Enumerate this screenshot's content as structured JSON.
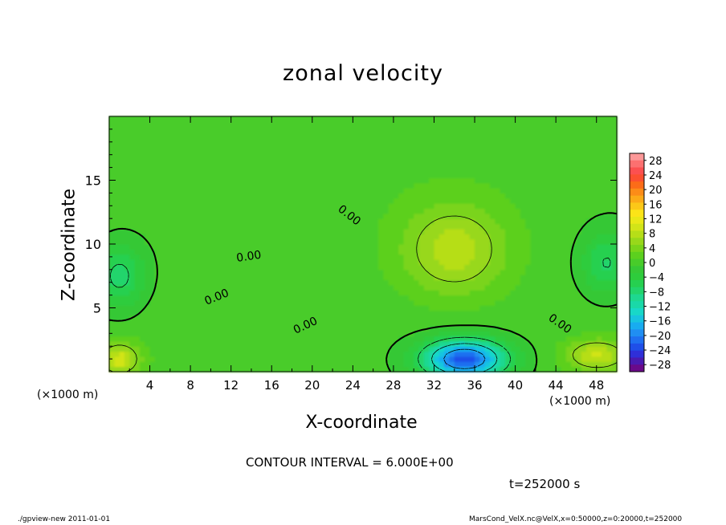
{
  "chart_data": {
    "type": "contour",
    "title": "zonal velocity",
    "xlabel": "X-coordinate",
    "ylabel": "Z-coordinate",
    "x_unit_label": "(×1000 m)",
    "y_unit_label": "(×1000 m)",
    "xlim": [
      0,
      50
    ],
    "ylim": [
      0,
      20
    ],
    "x_ticks": [
      4,
      8,
      12,
      16,
      20,
      24,
      28,
      32,
      36,
      40,
      44,
      48
    ],
    "y_ticks": [
      5,
      10,
      15
    ],
    "colorbar": {
      "levels": [
        -30,
        -28,
        -26,
        -24,
        -22,
        -20,
        -18,
        -16,
        -14,
        -12,
        -10,
        -8,
        -6,
        -4,
        -2,
        0,
        2,
        4,
        6,
        8,
        10,
        12,
        14,
        16,
        18,
        20,
        22,
        24,
        26,
        28,
        30
      ],
      "tick_labels": [
        "28",
        "24",
        "20",
        "16",
        "12",
        "8",
        "4",
        "0",
        "−4",
        "−8",
        "−12",
        "−16",
        "−20",
        "−24",
        "−28"
      ],
      "colors": [
        "#6a0a8a",
        "#4a1ab0",
        "#2f2fd8",
        "#1f4fe8",
        "#1f6ff0",
        "#208ef2",
        "#18acf0",
        "#18c4e0",
        "#18d8c8",
        "#1ad8a8",
        "#1ed890",
        "#22d46c",
        "#26d050",
        "#2ecc3c",
        "#36c836",
        "#48cc2a",
        "#5cd01e",
        "#7ad41a",
        "#98d81a",
        "#b6de18",
        "#d2e418",
        "#eae818",
        "#fce418",
        "#fcc818",
        "#fcaa18",
        "#fc8c18",
        "#fc6c18",
        "#fc5030",
        "#fc5050",
        "#fc7070",
        "#fc9898"
      ]
    },
    "contour_labels": [
      "0.00",
      "0.00",
      "0.00",
      "0.00",
      "0.00",
      "0.00"
    ],
    "fields": {
      "background": 1.0,
      "features": [
        {
          "x": 34,
          "z": 9.5,
          "amp": 8,
          "sx": 5,
          "sz": 3.5,
          "kind": "positive"
        },
        {
          "x": 35,
          "z": 1.0,
          "amp": -24,
          "sx": 4,
          "sz": 1.5,
          "kind": "negative"
        },
        {
          "x": 1,
          "z": 1.0,
          "amp": 10,
          "sx": 2,
          "sz": 1.3,
          "kind": "positive"
        },
        {
          "x": 48,
          "z": 1.3,
          "amp": 9,
          "sx": 3,
          "sz": 1.2,
          "kind": "positive"
        },
        {
          "x": 1,
          "z": 7.5,
          "amp": -8,
          "sx": 2.5,
          "sz": 2.5,
          "kind": "negative"
        },
        {
          "x": 49,
          "z": 8.5,
          "amp": -7,
          "sx": 2.5,
          "sz": 2.5,
          "kind": "negative"
        }
      ]
    },
    "contour_interval_text": "CONTOUR INTERVAL = 6.000E+00",
    "time_text": "t=252000 s"
  },
  "footer": {
    "program": "./gpview-new  2011-01-01",
    "source": "MarsCond_VelX.nc@VelX,x=0:50000,z=0:20000,t=252000"
  },
  "colors": {
    "axis": "#000000",
    "background": "#ffffff"
  }
}
